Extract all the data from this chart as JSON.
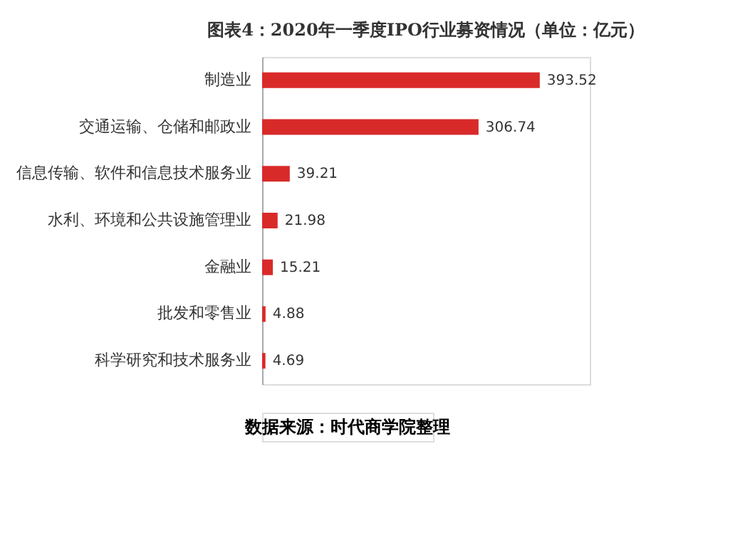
{
  "chart_data": {
    "type": "bar",
    "orientation": "horizontal",
    "title": "图表4：2020年一季度IPO行业募资情况（单位：亿元）",
    "categories": [
      "制造业",
      "交通运输、仓储和邮政业",
      "信息传输、软件和信息技术服务业",
      "水利、环境和公共设施管理业",
      "金融业",
      "批发和零售业",
      "科学研究和技术服务业"
    ],
    "values": [
      393.52,
      306.74,
      39.21,
      21.98,
      15.21,
      4.88,
      4.69
    ],
    "color": "#d92a2a",
    "data_labels": true,
    "annotations": [
      "数据来源：时代商学院整理"
    ]
  }
}
